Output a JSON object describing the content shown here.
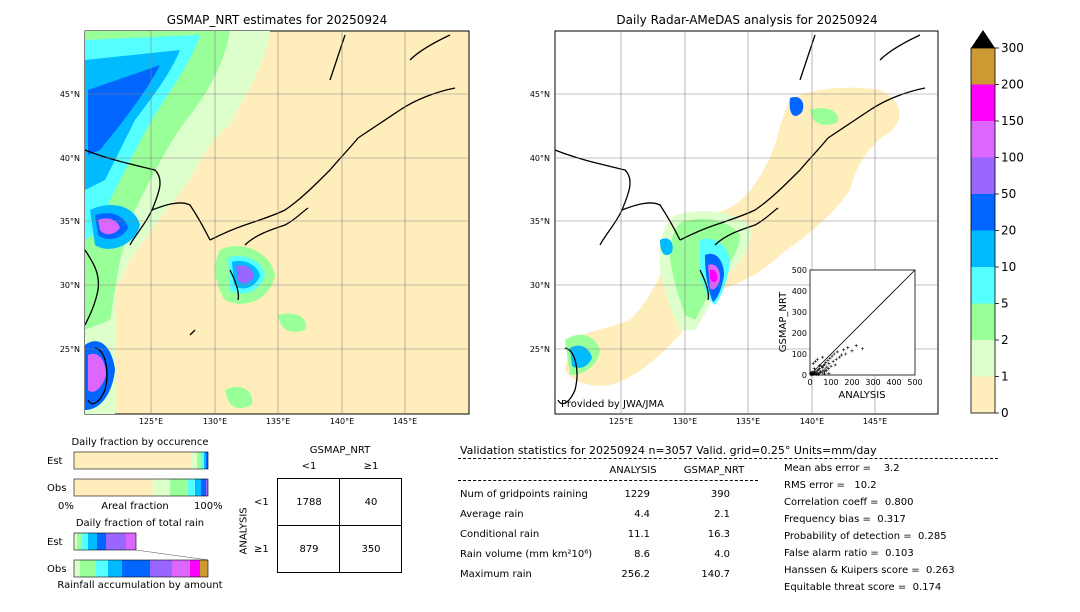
{
  "maps": {
    "left_title": "GSMAP_NRT estimates for 20250924",
    "right_title": "Daily Radar-AMeDAS analysis for 20250924",
    "lat_labels": [
      "45°N",
      "40°N",
      "35°N",
      "30°N",
      "25°N"
    ],
    "lon_labels": [
      "125°E",
      "130°E",
      "135°E",
      "140°E",
      "145°E"
    ],
    "credit": "Provided by JWA/JMA"
  },
  "colorbar": {
    "ticks": [
      "300",
      "200",
      "150",
      "100",
      "50",
      "20",
      "10",
      "5",
      "2",
      "1",
      "0"
    ],
    "colors": [
      "#cc9933",
      "#ff00ff",
      "#dd66ff",
      "#9966ff",
      "#0066ff",
      "#00bbff",
      "#55ffff",
      "#99ff99",
      "#ddffcc",
      "#ffeebb"
    ]
  },
  "occurrence": {
    "title": "Daily fraction by occurence",
    "rows": [
      "Est",
      "Obs"
    ],
    "axis_left": "0%",
    "axis_mid": "Areal fraction",
    "axis_right": "100%"
  },
  "total_rain": {
    "title": "Daily fraction of total rain",
    "rows": [
      "Est",
      "Obs"
    ],
    "caption": "Rainfall accumulation by amount"
  },
  "contingency": {
    "col_header": "GSMAP_NRT",
    "col_labels": [
      "<1",
      "≥1"
    ],
    "row_header": "ANALYSIS",
    "row_labels": [
      "<1",
      "≥1"
    ],
    "cells": [
      [
        "1788",
        "40"
      ],
      [
        "879",
        "350"
      ]
    ]
  },
  "validation": {
    "header": "Validation statistics for 20250924  n=3057 Valid. grid=0.25° Units=mm/day",
    "col_analysis": "ANALYSIS",
    "col_gsmap": "GSMAP_NRT",
    "rows": [
      {
        "label": "Num of gridpoints raining",
        "analysis": "1229",
        "gsmap": "390"
      },
      {
        "label": "Average rain",
        "analysis": "4.4",
        "gsmap": "2.1"
      },
      {
        "label": "Conditional rain",
        "analysis": "11.1",
        "gsmap": "16.3"
      },
      {
        "label": "Rain volume (mm km²10⁶)",
        "analysis": "8.6",
        "gsmap": "4.0"
      },
      {
        "label": "Maximum rain",
        "analysis": "256.2",
        "gsmap": "140.7"
      }
    ],
    "scores": [
      "Mean abs error =    3.2",
      "RMS error =   10.2",
      "Correlation coeff =  0.800",
      "Frequency bias =  0.317",
      "Probability of detection =  0.285",
      "False alarm ratio =  0.103",
      "Hanssen & Kuipers score =  0.263",
      "Equitable threat score =  0.174"
    ]
  },
  "chart_data": {
    "type": "scatter",
    "xlabel": "ANALYSIS",
    "ylabel": "GSMAP_NRT",
    "xlim": [
      0,
      500
    ],
    "ylim": [
      0,
      500
    ],
    "ticks": [
      0,
      100,
      200,
      300,
      400,
      500
    ],
    "points": [
      [
        5,
        2
      ],
      [
        8,
        4
      ],
      [
        10,
        1
      ],
      [
        12,
        6
      ],
      [
        15,
        3
      ],
      [
        18,
        8
      ],
      [
        20,
        5
      ],
      [
        22,
        12
      ],
      [
        25,
        4
      ],
      [
        28,
        15
      ],
      [
        30,
        10
      ],
      [
        32,
        2
      ],
      [
        35,
        20
      ],
      [
        38,
        8
      ],
      [
        40,
        25
      ],
      [
        42,
        5
      ],
      [
        45,
        30
      ],
      [
        48,
        12
      ],
      [
        50,
        18
      ],
      [
        55,
        40
      ],
      [
        58,
        10
      ],
      [
        60,
        35
      ],
      [
        62,
        22
      ],
      [
        65,
        45
      ],
      [
        68,
        15
      ],
      [
        70,
        50
      ],
      [
        72,
        28
      ],
      [
        75,
        60
      ],
      [
        78,
        20
      ],
      [
        80,
        38
      ],
      [
        85,
        70
      ],
      [
        88,
        30
      ],
      [
        90,
        55
      ],
      [
        95,
        80
      ],
      [
        100,
        42
      ],
      [
        105,
        90
      ],
      [
        110,
        65
      ],
      [
        115,
        100
      ],
      [
        120,
        48
      ],
      [
        125,
        75
      ],
      [
        130,
        110
      ],
      [
        140,
        85
      ],
      [
        150,
        95
      ],
      [
        160,
        120
      ],
      [
        170,
        100
      ],
      [
        180,
        130
      ],
      [
        200,
        115
      ],
      [
        220,
        140
      ],
      [
        250,
        125
      ],
      [
        15,
        55
      ],
      [
        25,
        65
      ],
      [
        35,
        75
      ],
      [
        45,
        45
      ],
      [
        60,
        85
      ],
      [
        20,
        30
      ],
      [
        10,
        15
      ],
      [
        3,
        8
      ],
      [
        6,
        10
      ],
      [
        40,
        2
      ],
      [
        70,
        5
      ],
      [
        90,
        8
      ]
    ]
  }
}
